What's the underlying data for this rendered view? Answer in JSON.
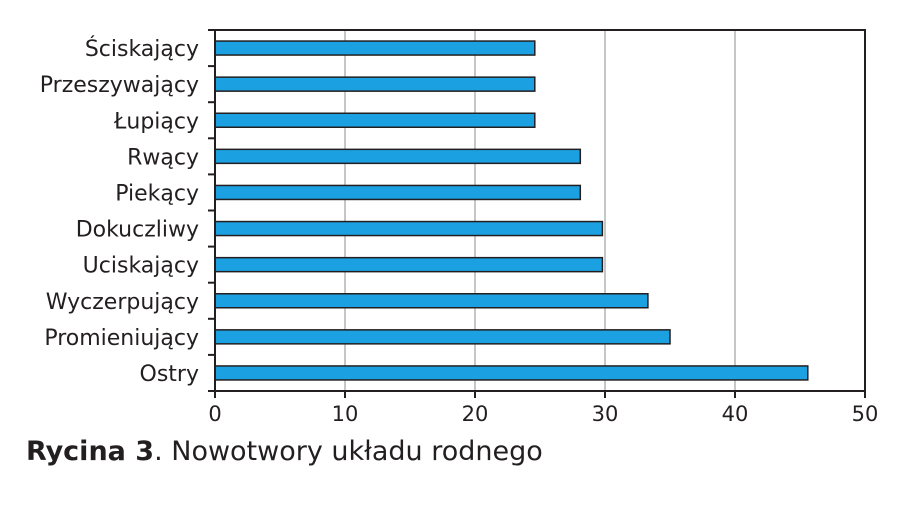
{
  "chart_data": {
    "type": "bar",
    "orientation": "horizontal",
    "categories": [
      "Ściskający",
      "Przeszywający",
      "Łupiący",
      "Rwący",
      "Piekący",
      "Dokuczliwy",
      "Uciskający",
      "Wyczerpujący",
      "Promieniujący",
      "Ostry"
    ],
    "values": [
      24.6,
      24.6,
      24.6,
      28.1,
      28.1,
      29.8,
      29.8,
      33.3,
      35.0,
      45.6
    ],
    "xlim": [
      0,
      50
    ],
    "xticks": [
      "0",
      "10",
      "20",
      "30",
      "40",
      "50"
    ],
    "grid": true,
    "bar_color": "#1ba1e2"
  },
  "caption": {
    "bold": "Rycina 3",
    "text": ". Nowotwory układu rodnego"
  }
}
